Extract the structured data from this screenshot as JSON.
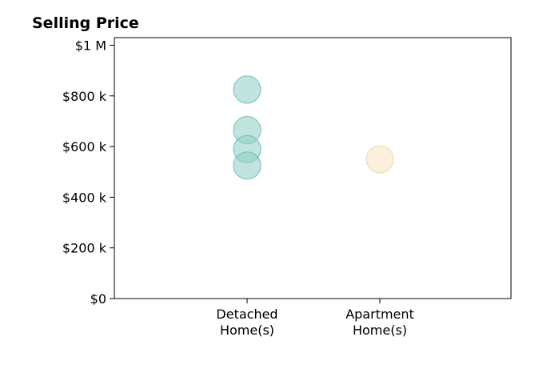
{
  "chart_data": {
    "type": "scatter",
    "title": "Selling Price",
    "xlabel": "",
    "ylabel": "",
    "categories": [
      [
        "Detached",
        "Home(s)"
      ],
      [
        "Apartment",
        "Home(s)"
      ]
    ],
    "ylim": [
      0,
      1030000
    ],
    "yticks": [
      {
        "value": 0,
        "label": "$0"
      },
      {
        "value": 200000,
        "label": "$200 k"
      },
      {
        "value": 400000,
        "label": "$400 k"
      },
      {
        "value": 600000,
        "label": "$600 k"
      },
      {
        "value": 800000,
        "label": "$800 k"
      },
      {
        "value": 1000000,
        "label": "$1 M"
      }
    ],
    "series": [
      {
        "category_index": 0,
        "color": "#8ecdc4",
        "stroke": "#6cbcb1",
        "values": [
          825000,
          665000,
          590000,
          525000
        ]
      },
      {
        "category_index": 1,
        "color": "#f6e3bf",
        "stroke": "#edd5aa",
        "values": [
          550000
        ]
      }
    ],
    "grid": false,
    "legend": "none"
  }
}
